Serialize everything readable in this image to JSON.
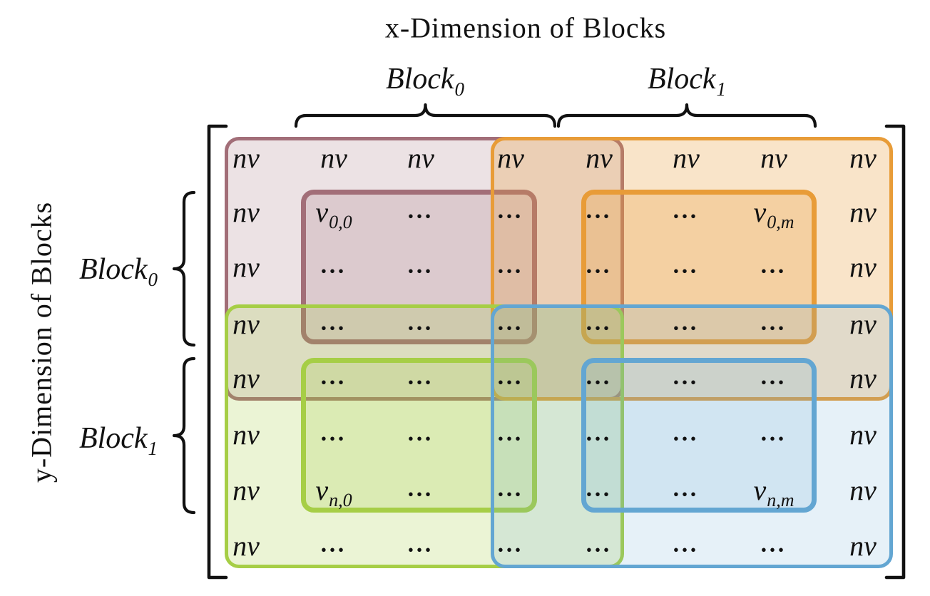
{
  "titles": {
    "x": "x-Dimension of Blocks",
    "y": "y-Dimension of Blocks"
  },
  "x_blocks": [
    {
      "base": "Block",
      "sub": "0"
    },
    {
      "base": "Block",
      "sub": "1"
    }
  ],
  "y_blocks": [
    {
      "base": "Block",
      "sub": "0"
    },
    {
      "base": "Block",
      "sub": "1"
    }
  ],
  "matrix": {
    "rows": 8,
    "cols": 8,
    "cells": [
      [
        "nv",
        "nv",
        "nv",
        "nv",
        "nv",
        "nv",
        "nv",
        "nv"
      ],
      [
        "nv",
        "v|0,0",
        "...",
        "...",
        "...",
        "...",
        "v|0,m",
        "nv"
      ],
      [
        "nv",
        "...",
        "...",
        "...",
        "...",
        "...",
        "...",
        "nv"
      ],
      [
        "nv",
        "...",
        "...",
        "...",
        "...",
        "...",
        "...",
        "nv"
      ],
      [
        "nv",
        "...",
        "...",
        "...",
        "...",
        "...",
        "...",
        "nv"
      ],
      [
        "nv",
        "...",
        "...",
        "...",
        "...",
        "...",
        "...",
        "nv"
      ],
      [
        "nv",
        "v|n,0",
        "...",
        "...",
        "...",
        "...",
        "v|n,m",
        "nv"
      ],
      [
        "nv",
        "...",
        "...",
        "...",
        "...",
        "...",
        "...",
        "nv"
      ]
    ]
  },
  "regions": {
    "block00": {
      "border": "#a26e78",
      "fill": "rgba(162,110,120,0.20)"
    },
    "block01": {
      "border": "#e89c38",
      "fill": "rgba(234,159,60,0.28)"
    },
    "block10": {
      "border": "#a6ce46",
      "fill": "rgba(163,204,63,0.22)"
    },
    "block11": {
      "border": "#63a6d2",
      "fill": "rgba(100,165,211,0.16)"
    }
  },
  "ink_color": "#111111"
}
